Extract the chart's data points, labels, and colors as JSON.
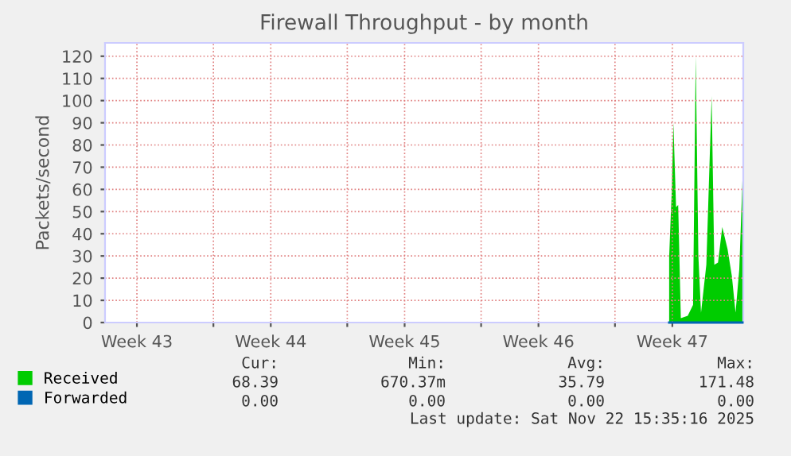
{
  "chart_data": {
    "type": "area",
    "title": "Firewall Throughput - by month",
    "ylabel": "Packets/second",
    "xlim": [
      "2025-10-20T08:00",
      "2025-11-22T17:00"
    ],
    "xticks": [
      {
        "value": "2025-10-22",
        "label": "Week 43"
      },
      {
        "value": "2025-10-26",
        "label": null
      },
      {
        "value": "2025-10-29",
        "label": "Week 44"
      },
      {
        "value": "2025-11-02",
        "label": null
      },
      {
        "value": "2025-11-05",
        "label": "Week 45"
      },
      {
        "value": "2025-11-09",
        "label": null
      },
      {
        "value": "2025-11-12",
        "label": "Week 46"
      },
      {
        "value": "2025-11-16",
        "label": null
      },
      {
        "value": "2025-11-19",
        "label": "Week 47"
      }
    ],
    "ylim": [
      0,
      126
    ],
    "yticks": [
      0,
      10,
      20,
      30,
      40,
      50,
      60,
      70,
      80,
      90,
      100,
      110,
      120
    ],
    "grid": true,
    "legend": "bottom left",
    "series": [
      {
        "name": "Received",
        "color": "#00cc00",
        "x": [
          "2025-11-18T20:00",
          "2025-11-18T23:20",
          "2025-11-19T01:20",
          "2025-11-19T04:40",
          "2025-11-19T07:20",
          "2025-11-19T10:40",
          "2025-11-19T19:20",
          "2025-11-20T02:00",
          "2025-11-20T05:20",
          "2025-11-20T08:40",
          "2025-11-20T12:00",
          "2025-11-20T18:40",
          "2025-11-21T01:20",
          "2025-11-21T04:40",
          "2025-11-21T09:20",
          "2025-11-21T14:40",
          "2025-11-21T21:20",
          "2025-11-22T02:40",
          "2025-11-22T07:20",
          "2025-11-22T12:00",
          "2025-11-22T16:00"
        ],
        "values": [
          29.5,
          60,
          90,
          52,
          53,
          2,
          3,
          8,
          120,
          30,
          4.5,
          26,
          102,
          26,
          27,
          43,
          33,
          21,
          4.5,
          24,
          64
        ]
      },
      {
        "name": "Forwarded",
        "type": "line",
        "color": "#0066b3",
        "x": [
          "2025-11-18T20:00",
          "2025-11-22T16:00"
        ],
        "values": [
          0,
          0
        ]
      }
    ],
    "annotations": [
      "Cur:",
      "Min:",
      "Avg:",
      "Max:",
      "68.39",
      "670.37m",
      "35.79",
      "171.48",
      "0.00",
      "0.00",
      "0.00",
      "0.00",
      "Last update: Sat Nov 22 15:35:16 2025"
    ]
  }
}
